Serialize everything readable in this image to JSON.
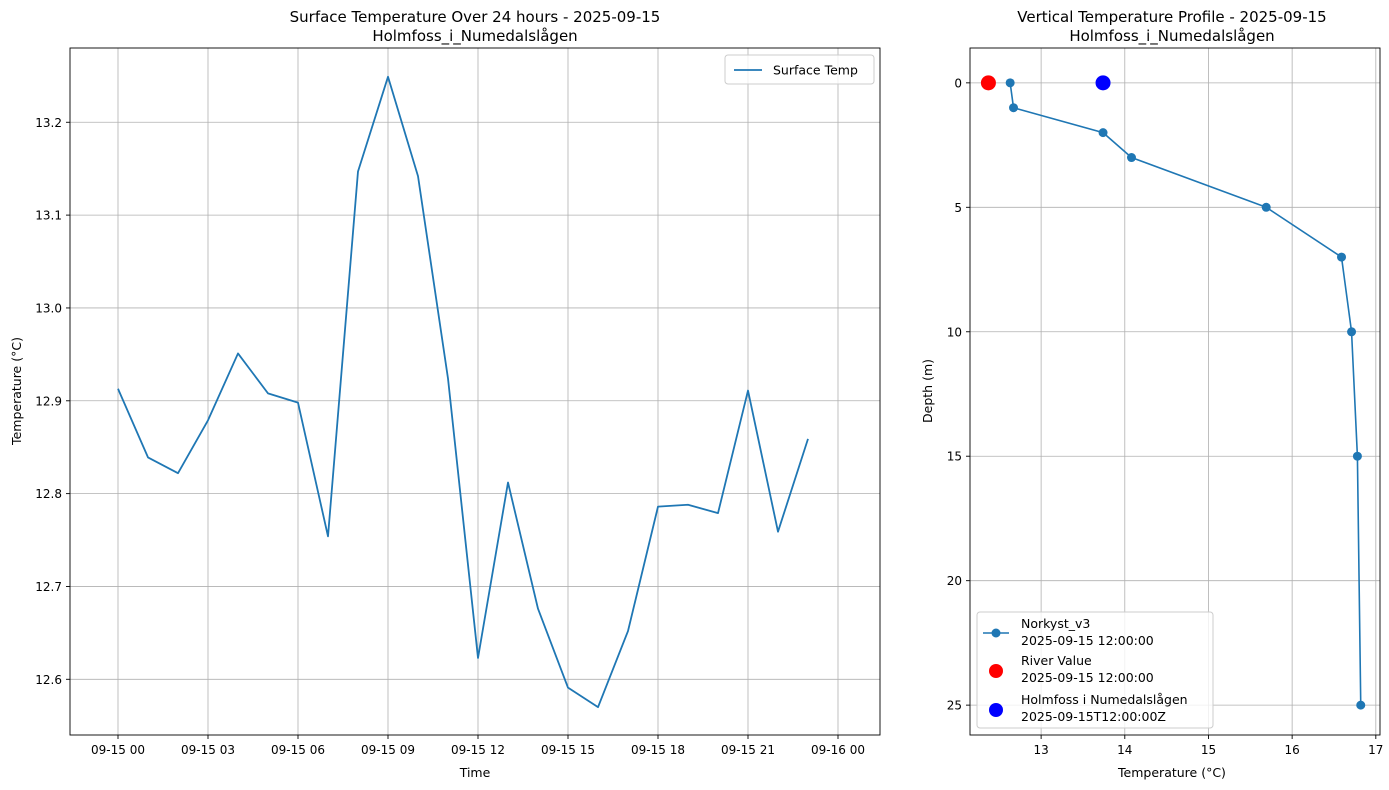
{
  "chart_data": [
    {
      "type": "line",
      "title": "Surface Temperature Over 24 hours - 2025-09-15",
      "subtitle": "Holmfoss_i_Numedalslågen",
      "xlabel": "Time",
      "ylabel": "Temperature (°C)",
      "xlim": [
        -1.6,
        25.4
      ],
      "ylim": [
        12.54,
        13.28
      ],
      "grid": true,
      "legend_position": "top-right",
      "x_ticks": [
        {
          "v": 0,
          "label": "09-15 00"
        },
        {
          "v": 3,
          "label": "09-15 03"
        },
        {
          "v": 6,
          "label": "09-15 06"
        },
        {
          "v": 9,
          "label": "09-15 09"
        },
        {
          "v": 12,
          "label": "09-15 12"
        },
        {
          "v": 15,
          "label": "09-15 15"
        },
        {
          "v": 18,
          "label": "09-15 18"
        },
        {
          "v": 21,
          "label": "09-15 21"
        },
        {
          "v": 24,
          "label": "09-16 00"
        }
      ],
      "y_ticks": [
        {
          "v": 12.6,
          "label": "12.6"
        },
        {
          "v": 12.7,
          "label": "12.7"
        },
        {
          "v": 12.8,
          "label": "12.8"
        },
        {
          "v": 12.9,
          "label": "12.9"
        },
        {
          "v": 13.0,
          "label": "13.0"
        },
        {
          "v": 13.1,
          "label": "13.1"
        },
        {
          "v": 13.2,
          "label": "13.2"
        }
      ],
      "series": [
        {
          "name": "Surface Temp",
          "color": "#1f77b4",
          "x": [
            0,
            1,
            2,
            3,
            4,
            5,
            6,
            7,
            8,
            9,
            10,
            11,
            12,
            13,
            14,
            15,
            16,
            17,
            18,
            19,
            20,
            21,
            22,
            23
          ],
          "values": [
            12.913,
            12.839,
            12.822,
            12.879,
            12.951,
            12.908,
            12.898,
            12.754,
            13.147,
            13.249,
            13.142,
            12.924,
            12.623,
            12.812,
            12.676,
            12.591,
            12.57,
            12.652,
            12.786,
            12.788,
            12.779,
            12.911,
            12.759,
            12.859
          ]
        }
      ]
    },
    {
      "type": "line",
      "title": "Vertical Temperature Profile - 2025-09-15",
      "subtitle": "Holmfoss_i_Numedalslågen",
      "xlabel": "Temperature (°C)",
      "ylabel": "Depth (m)",
      "xlim": [
        12.15,
        17.05
      ],
      "ylim": [
        26.2,
        -1.4
      ],
      "grid": true,
      "legend_position": "bottom-left",
      "x_ticks": [
        {
          "v": 13,
          "label": "13"
        },
        {
          "v": 14,
          "label": "14"
        },
        {
          "v": 15,
          "label": "15"
        },
        {
          "v": 16,
          "label": "16"
        },
        {
          "v": 17,
          "label": "17"
        }
      ],
      "y_ticks": [
        {
          "v": 0,
          "label": "0"
        },
        {
          "v": 5,
          "label": "5"
        },
        {
          "v": 10,
          "label": "10"
        },
        {
          "v": 15,
          "label": "15"
        },
        {
          "v": 20,
          "label": "20"
        },
        {
          "v": 25,
          "label": "25"
        }
      ],
      "series": [
        {
          "name": "Norkyst_v3",
          "sublabel": "2025-09-15 12:00:00",
          "color": "#1f77b4",
          "temperature": [
            12.63,
            12.67,
            13.74,
            14.08,
            15.69,
            16.59,
            16.71,
            16.78,
            16.82
          ],
          "depth": [
            0,
            1,
            2,
            3,
            5,
            7,
            10,
            15,
            25
          ]
        },
        {
          "name": "River Value",
          "sublabel": "2025-09-15 12:00:00",
          "color": "#ff0000",
          "temperature": [
            12.37
          ],
          "depth": [
            0
          ]
        },
        {
          "name": "Holmfoss i Numedalslågen",
          "sublabel": "2025-09-15T12:00:00Z",
          "color": "#0000ff",
          "temperature": [
            13.74
          ],
          "depth": [
            0
          ]
        }
      ]
    }
  ]
}
